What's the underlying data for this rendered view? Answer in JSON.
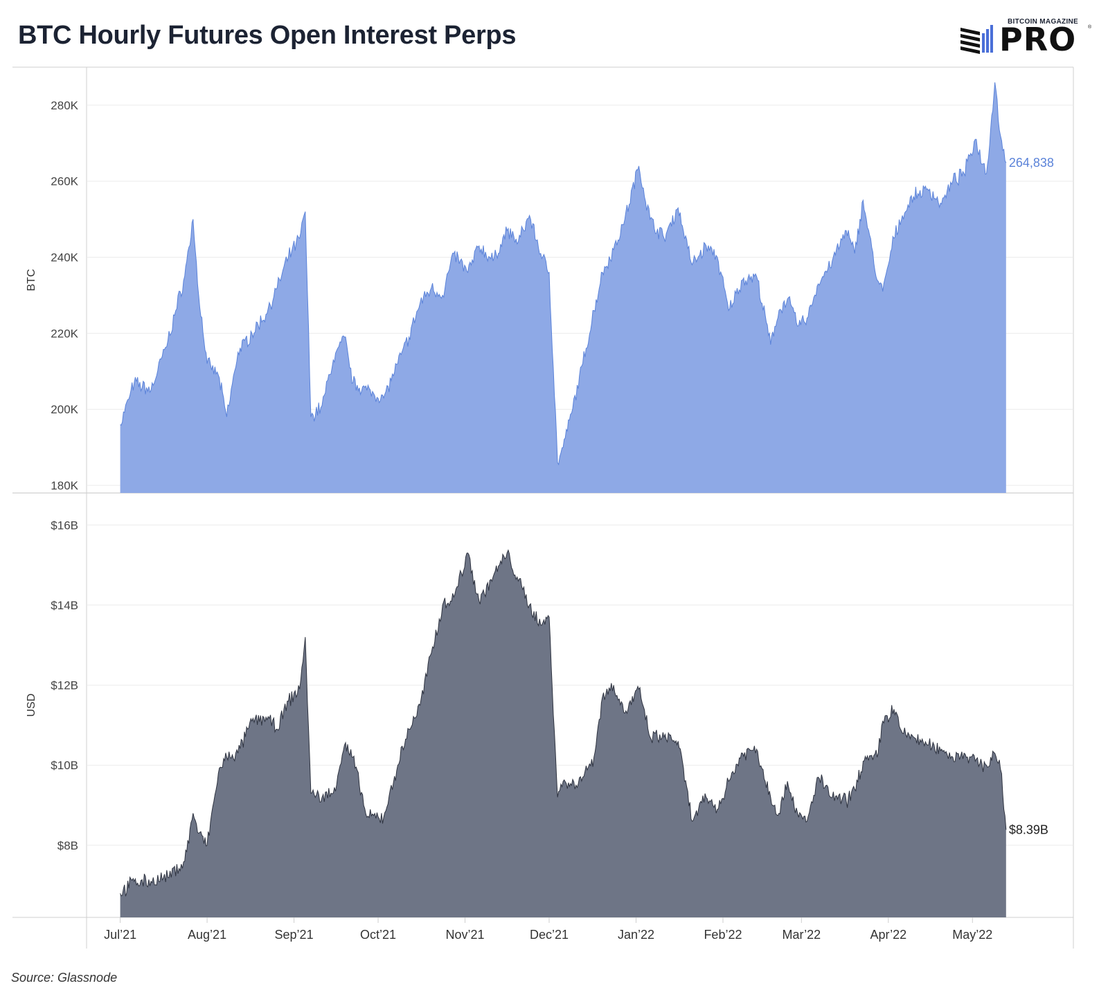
{
  "header": {
    "title": "BTC Hourly Futures Open Interest Perps",
    "logo_small": "BITCOIN MAGAZINE",
    "logo_big": "PRO",
    "logo_reg": "®"
  },
  "footer": {
    "source": "Source: Glassnode"
  },
  "colors": {
    "btc_fill": "#8ea9e6",
    "btc_line": "#5b83d9",
    "usd_fill": "#6e7586",
    "usd_line": "#2e3340",
    "grid": "#ebebeb",
    "axis": "#cfcfcf"
  },
  "chart_data": [
    {
      "type": "area",
      "ylabel": "BTC",
      "yticks": [
        "180K",
        "200K",
        "220K",
        "240K",
        "260K",
        "280K"
      ],
      "ytick_values": [
        180000,
        200000,
        220000,
        240000,
        260000,
        280000
      ],
      "ylim": [
        178000,
        290000
      ],
      "xticks": [
        "Jul’21",
        "Aug’21",
        "Sep’21",
        "Oct’21",
        "Nov’21",
        "Dec’21",
        "Jan’22",
        "Feb’22",
        "Mar’22",
        "Apr’22",
        "May’22"
      ],
      "xtick_dates": [
        "2021-07-01",
        "2021-08-01",
        "2021-09-01",
        "2021-10-01",
        "2021-11-01",
        "2021-12-01",
        "2022-01-01",
        "2022-02-01",
        "2022-03-01",
        "2022-04-01",
        "2022-05-01"
      ],
      "xlim": [
        "2021-06-19",
        "2022-06-06"
      ],
      "last_label": "264,838",
      "x": [
        "2021-07-01",
        "2021-07-06",
        "2021-07-12",
        "2021-07-18",
        "2021-07-24",
        "2021-07-27",
        "2021-07-29",
        "2021-08-01",
        "2021-08-05",
        "2021-08-08",
        "2021-08-12",
        "2021-08-17",
        "2021-08-22",
        "2021-08-26",
        "2021-08-30",
        "2021-09-03",
        "2021-09-05",
        "2021-09-07",
        "2021-09-11",
        "2021-09-15",
        "2021-09-19",
        "2021-09-22",
        "2021-09-27",
        "2021-10-03",
        "2021-10-08",
        "2021-10-12",
        "2021-10-16",
        "2021-10-20",
        "2021-10-24",
        "2021-10-28",
        "2021-11-02",
        "2021-11-06",
        "2021-11-11",
        "2021-11-16",
        "2021-11-20",
        "2021-11-24",
        "2021-11-28",
        "2021-12-01",
        "2021-12-04",
        "2021-12-06",
        "2021-12-09",
        "2021-12-13",
        "2021-12-17",
        "2021-12-20",
        "2021-12-24",
        "2021-12-28",
        "2022-01-02",
        "2022-01-06",
        "2022-01-11",
        "2022-01-16",
        "2022-01-21",
        "2022-01-26",
        "2022-01-30",
        "2022-02-03",
        "2022-02-08",
        "2022-02-13",
        "2022-02-18",
        "2022-02-21",
        "2022-02-24",
        "2022-02-28",
        "2022-03-03",
        "2022-03-07",
        "2022-03-12",
        "2022-03-17",
        "2022-03-20",
        "2022-03-23",
        "2022-03-28",
        "2022-03-30",
        "2022-04-03",
        "2022-04-06",
        "2022-04-10",
        "2022-04-15",
        "2022-04-20",
        "2022-04-24",
        "2022-04-28",
        "2022-05-02",
        "2022-05-06",
        "2022-05-09",
        "2022-05-11",
        "2022-05-13"
      ],
      "values": [
        196000,
        207000,
        205000,
        218000,
        235000,
        250000,
        230000,
        212000,
        209000,
        198000,
        215000,
        220000,
        225000,
        232000,
        240000,
        245000,
        252000,
        198000,
        201000,
        213000,
        219000,
        207000,
        205000,
        203000,
        212000,
        219000,
        228000,
        232000,
        230000,
        241000,
        236000,
        243000,
        239000,
        247000,
        244000,
        251000,
        241000,
        236000,
        186000,
        190000,
        199000,
        212000,
        226000,
        236000,
        242000,
        250000,
        264000,
        250000,
        245000,
        253000,
        238000,
        243000,
        240000,
        226000,
        234000,
        235000,
        217000,
        226000,
        229000,
        222000,
        224000,
        233000,
        239000,
        247000,
        241000,
        255000,
        234000,
        231000,
        245000,
        251000,
        256000,
        258000,
        254000,
        260000,
        262000,
        271000,
        262000,
        286000,
        272000,
        264838
      ]
    },
    {
      "type": "area",
      "ylabel": "USD",
      "yticks": [
        "$8B",
        "$10B",
        "$12B",
        "$14B",
        "$16B"
      ],
      "ytick_values": [
        8,
        10,
        12,
        14,
        16
      ],
      "ylim": [
        6.2,
        16.8
      ],
      "xticks": [
        "Jul’21",
        "Aug’21",
        "Sep’21",
        "Oct’21",
        "Nov’21",
        "Dec’21",
        "Jan’22",
        "Feb’22",
        "Mar’22",
        "Apr’22",
        "May’22"
      ],
      "xtick_dates": [
        "2021-07-01",
        "2021-08-01",
        "2021-09-01",
        "2021-10-01",
        "2021-11-01",
        "2021-12-01",
        "2022-01-01",
        "2022-02-01",
        "2022-03-01",
        "2022-04-01",
        "2022-05-01"
      ],
      "xlim": [
        "2021-06-19",
        "2022-06-06"
      ],
      "last_label": "$8.39B",
      "x": [
        "2021-07-01",
        "2021-07-06",
        "2021-07-12",
        "2021-07-18",
        "2021-07-24",
        "2021-07-27",
        "2021-07-29",
        "2021-08-01",
        "2021-08-05",
        "2021-08-08",
        "2021-08-12",
        "2021-08-17",
        "2021-08-22",
        "2021-08-26",
        "2021-08-30",
        "2021-09-03",
        "2021-09-05",
        "2021-09-07",
        "2021-09-11",
        "2021-09-15",
        "2021-09-19",
        "2021-09-22",
        "2021-09-27",
        "2021-10-03",
        "2021-10-08",
        "2021-10-12",
        "2021-10-16",
        "2021-10-20",
        "2021-10-24",
        "2021-10-28",
        "2021-11-02",
        "2021-11-06",
        "2021-11-11",
        "2021-11-16",
        "2021-11-20",
        "2021-11-24",
        "2021-11-28",
        "2021-12-01",
        "2021-12-04",
        "2021-12-06",
        "2021-12-09",
        "2021-12-13",
        "2021-12-17",
        "2021-12-20",
        "2021-12-24",
        "2021-12-28",
        "2022-01-02",
        "2022-01-06",
        "2022-01-11",
        "2022-01-16",
        "2022-01-21",
        "2022-01-26",
        "2022-01-30",
        "2022-02-03",
        "2022-02-08",
        "2022-02-13",
        "2022-02-18",
        "2022-02-21",
        "2022-02-24",
        "2022-02-28",
        "2022-03-03",
        "2022-03-07",
        "2022-03-12",
        "2022-03-17",
        "2022-03-20",
        "2022-03-23",
        "2022-03-28",
        "2022-03-30",
        "2022-04-03",
        "2022-04-06",
        "2022-04-10",
        "2022-04-15",
        "2022-04-20",
        "2022-04-24",
        "2022-04-28",
        "2022-05-02",
        "2022-05-06",
        "2022-05-09",
        "2022-05-11",
        "2022-05-13"
      ],
      "values": [
        6.8,
        7.1,
        7.1,
        7.2,
        7.6,
        8.8,
        8.3,
        8.0,
        9.8,
        10.2,
        10.3,
        11.1,
        11.2,
        10.9,
        11.6,
        11.9,
        13.2,
        9.3,
        9.2,
        9.3,
        10.5,
        10.2,
        8.7,
        8.7,
        10.0,
        10.9,
        11.5,
        12.8,
        14.0,
        14.2,
        15.3,
        14.1,
        14.7,
        15.3,
        14.6,
        14.0,
        13.5,
        13.7,
        9.2,
        9.6,
        9.5,
        9.7,
        10.2,
        11.7,
        12.0,
        11.3,
        11.9,
        10.7,
        10.7,
        10.6,
        8.6,
        9.2,
        8.9,
        9.6,
        10.3,
        10.4,
        9.2,
        8.8,
        9.6,
        8.7,
        8.6,
        9.7,
        9.2,
        9.1,
        9.4,
        10.1,
        10.2,
        11.1,
        11.4,
        10.8,
        10.7,
        10.5,
        10.4,
        10.2,
        10.3,
        10.1,
        10.0,
        10.3,
        9.9,
        8.39
      ]
    }
  ]
}
